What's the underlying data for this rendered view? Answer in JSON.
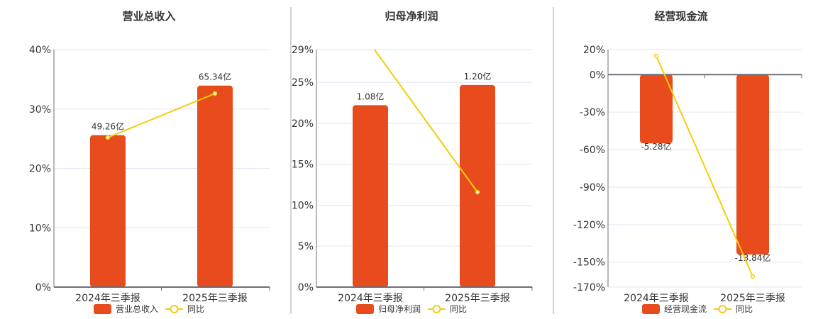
{
  "colors": {
    "bar": "#e84c1c",
    "line": "#f5cc0a",
    "grid": "#e0e6f1",
    "axis": "#6e7079"
  },
  "chart_data": [
    {
      "type": "bar+line",
      "title": "营业总收入",
      "categories": [
        "2024年三季报",
        "2025年三季报"
      ],
      "bar_series": {
        "name": "营业总收入",
        "values": [
          49.26,
          65.34
        ],
        "labels": [
          "49.26亿",
          "65.34亿"
        ]
      },
      "line_series": {
        "name": "同比",
        "values": [
          25.2,
          32.6
        ]
      },
      "y_ticks": [
        "0%",
        "10%",
        "20%",
        "30%",
        "40%"
      ],
      "ylim": [
        0,
        40
      ],
      "grid": true,
      "legend": "bottom"
    },
    {
      "type": "bar+line",
      "title": "归母净利润",
      "categories": [
        "2024年三季报",
        "2025年三季报"
      ],
      "bar_series": {
        "name": "归母净利润",
        "values": [
          1.08,
          1.2
        ],
        "labels": [
          "1.08亿",
          "1.20亿"
        ]
      },
      "line_series": {
        "name": "同比",
        "values": [
          29.7,
          11.6
        ]
      },
      "y_ticks": [
        "0%",
        "5%",
        "10%",
        "15%",
        "20%",
        "25%",
        "29%"
      ],
      "ylim": [
        0,
        29
      ],
      "grid": true,
      "legend": "bottom"
    },
    {
      "type": "bar+line",
      "title": "经营现金流",
      "categories": [
        "2024年三季报",
        "2025年三季报"
      ],
      "bar_series": {
        "name": "经营现金流",
        "values": [
          -5.28,
          -13.84
        ],
        "labels": [
          "-5.28亿",
          "-13.84亿"
        ]
      },
      "line_series": {
        "name": "同比",
        "values": [
          14.9,
          -161.5
        ]
      },
      "y_ticks": [
        "-170%",
        "-150%",
        "-120%",
        "-90%",
        "-60%",
        "-30%",
        "0%",
        "20%"
      ],
      "ylim": [
        -170,
        20
      ],
      "grid": true,
      "legend": "bottom"
    }
  ]
}
